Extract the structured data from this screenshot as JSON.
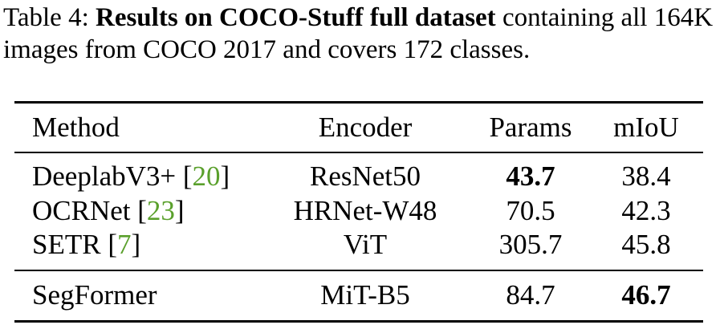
{
  "caption": {
    "label": "Table 4:",
    "title": "Results on COCO-Stuff full dataset",
    "rest": " containing all 164K images from COCO 2017 and covers 172 classes."
  },
  "table": {
    "headers": {
      "method": "Method",
      "encoder": "Encoder",
      "params": "Params",
      "miou": "mIoU"
    },
    "rows": [
      {
        "method": "DeeplabV3+",
        "ref": "20",
        "encoder": "ResNet50",
        "params": "43.7",
        "miou": "38.4"
      },
      {
        "method": "OCRNet",
        "ref": "23",
        "encoder": "HRNet-W48",
        "params": "70.5",
        "miou": "42.3"
      },
      {
        "method": "SETR",
        "ref": "7",
        "encoder": "ViT",
        "params": "305.7",
        "miou": "45.8"
      },
      {
        "method": "SegFormer",
        "ref": "",
        "encoder": "MiT-B5",
        "params": "84.7",
        "miou": "46.7"
      }
    ],
    "ref_color": "#5aa02c"
  }
}
